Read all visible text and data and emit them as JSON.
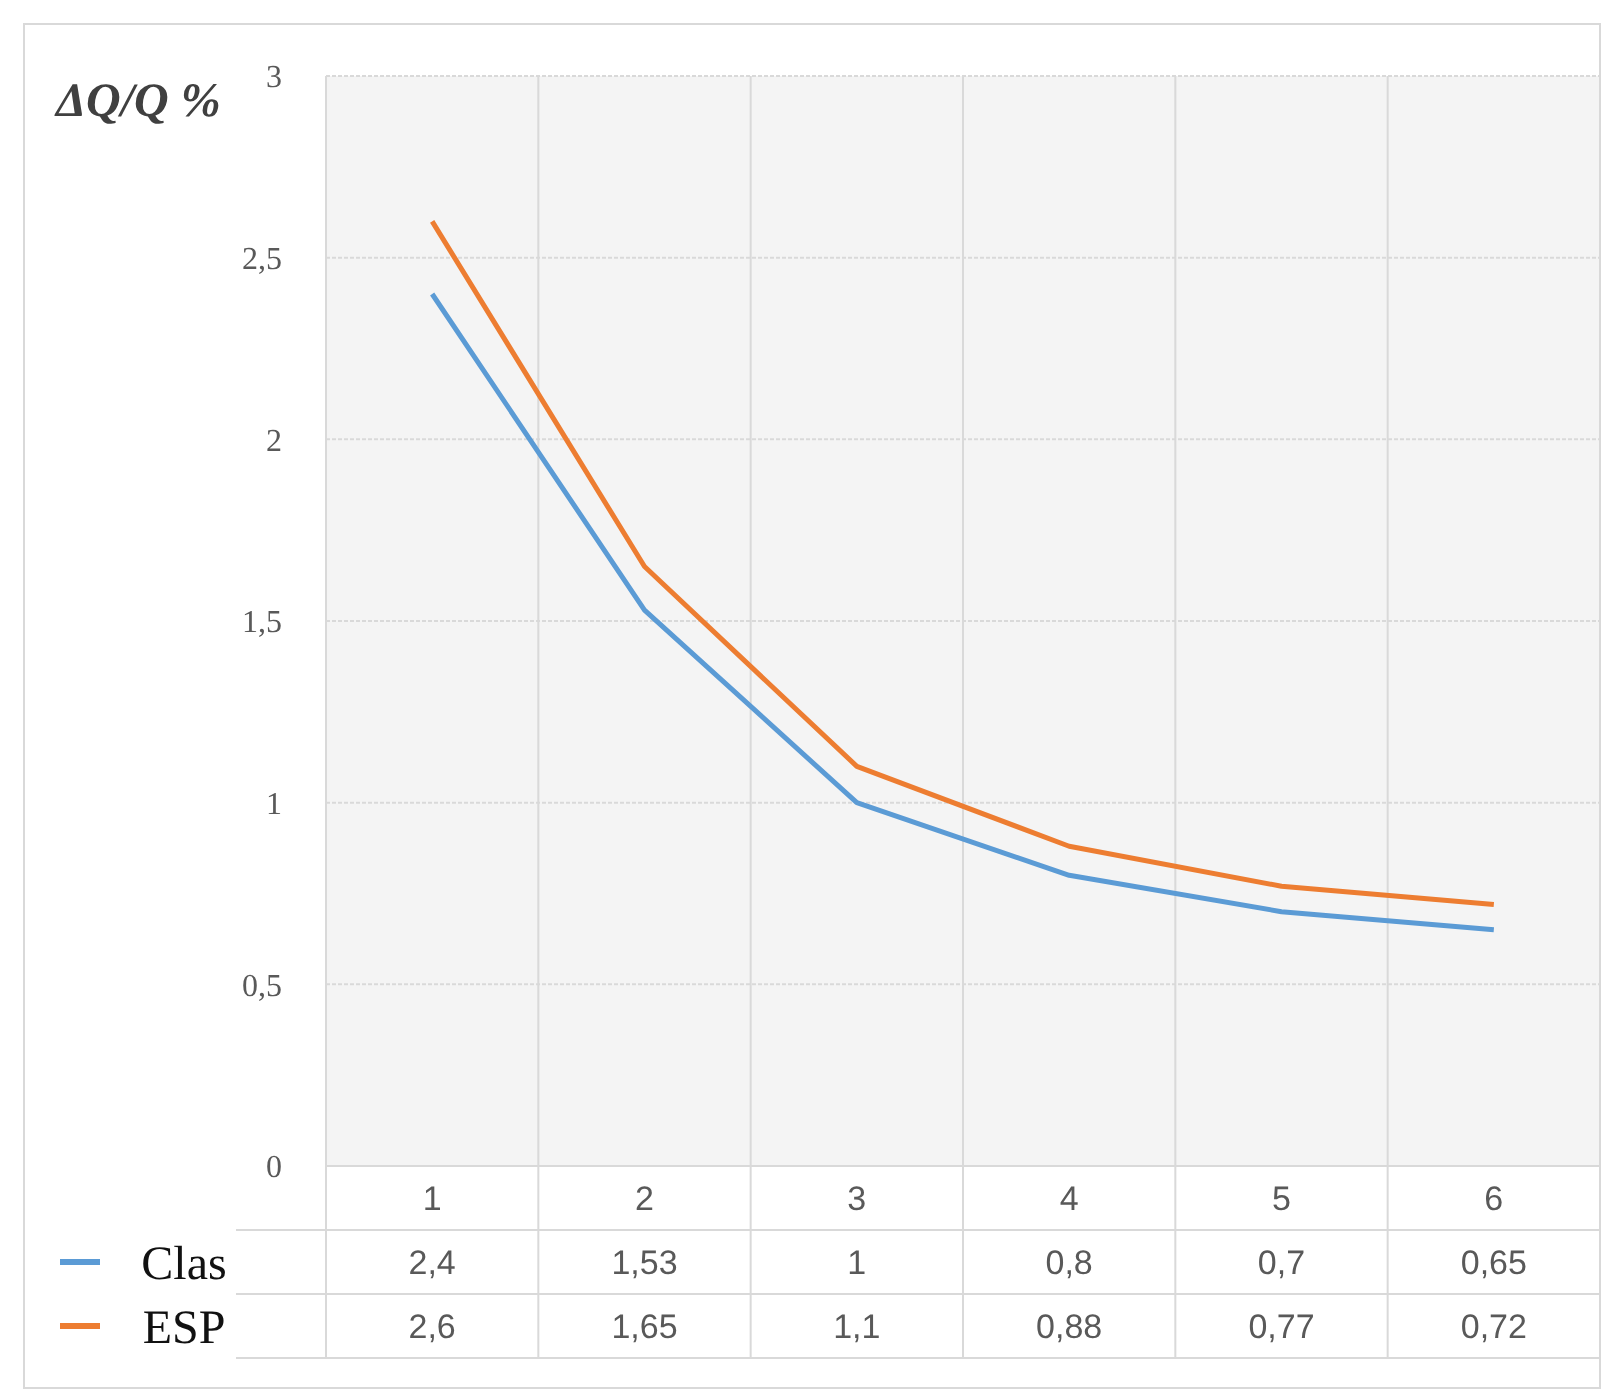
{
  "chart_data": {
    "type": "line",
    "ylabel": "ΔQ/Q %",
    "categories": [
      "1",
      "2",
      "3",
      "4",
      "5",
      "6"
    ],
    "series": [
      {
        "name": "Clas",
        "color": "#5b9bd5",
        "values": [
          2.4,
          1.53,
          1,
          0.8,
          0.7,
          0.65
        ],
        "value_labels": [
          "2,4",
          "1,53",
          "1",
          "0,8",
          "0,7",
          "0,65"
        ]
      },
      {
        "name": "ESP",
        "color": "#ed7d31",
        "values": [
          2.6,
          1.65,
          1.1,
          0.88,
          0.77,
          0.72
        ],
        "value_labels": [
          "2,6",
          "1,65",
          "1,1",
          "0,88",
          "0,77",
          "0,72"
        ]
      }
    ],
    "ylim": [
      0,
      3
    ],
    "yticks": [
      0,
      {
        "value": 0.5,
        "label": "0,5"
      },
      1,
      {
        "value": 1.5,
        "label": "1,5"
      },
      2,
      {
        "value": 2.5,
        "label": "2,5"
      },
      3
    ],
    "grid": true,
    "legend": "bottom left",
    "marker": "none",
    "line_style": "solid"
  }
}
